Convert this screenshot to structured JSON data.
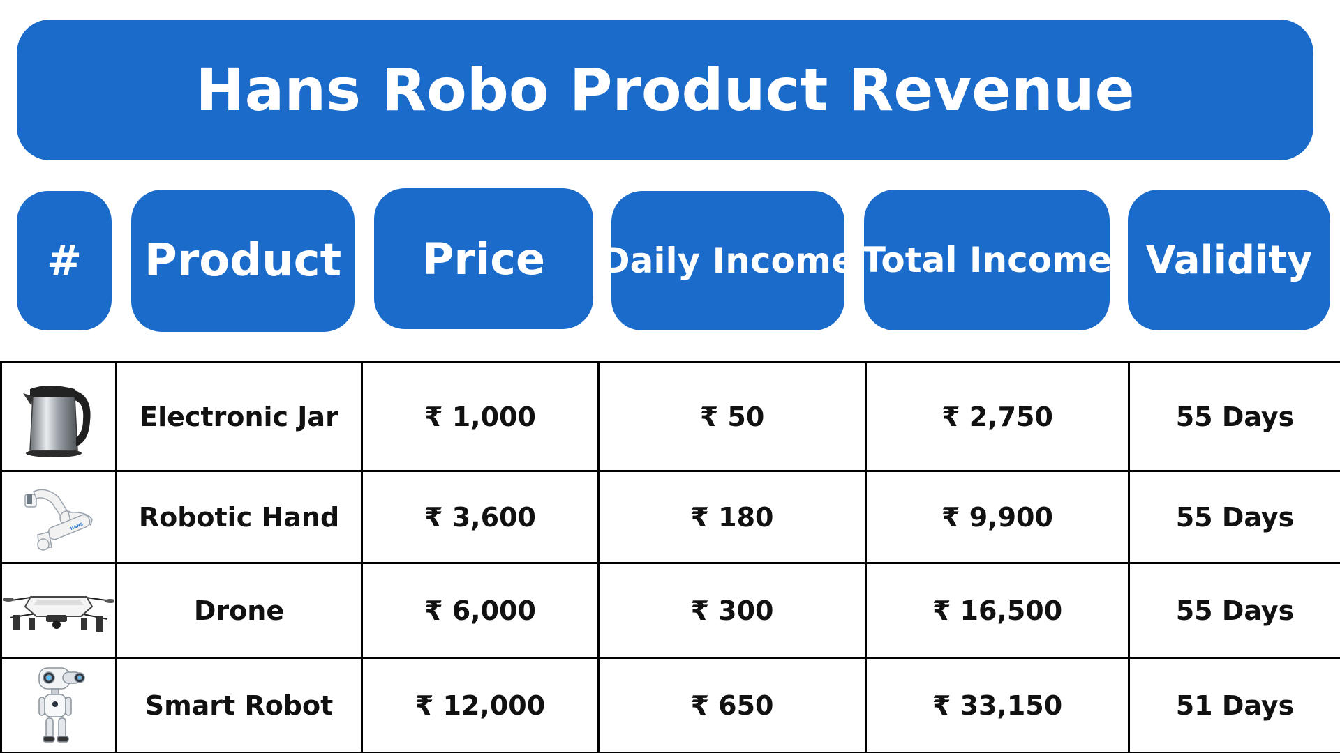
{
  "title": "Hans Robo Product Revenue",
  "headers": {
    "index": "#",
    "product": "Product",
    "price": "Price",
    "daily_income": "Daily Income",
    "total_income": "Total Income",
    "validity": "Validity"
  },
  "rows": [
    {
      "icon": "kettle-icon",
      "product": "Electronic Jar",
      "price": "₹ 1,000",
      "daily_income": "₹ 50",
      "total_income": "₹ 2,750",
      "validity": "55 Days"
    },
    {
      "icon": "robotic-arm-icon",
      "product": "Robotic Hand",
      "price": "₹ 3,600",
      "daily_income": "₹ 180",
      "total_income": "₹ 9,900",
      "validity": "55 Days"
    },
    {
      "icon": "drone-icon",
      "product": "Drone",
      "price": "₹ 6,000",
      "daily_income": "₹ 300",
      "total_income": "₹ 16,500",
      "validity": "55 Days"
    },
    {
      "icon": "robot-icon",
      "product": "Smart Robot",
      "price": "₹ 12,000",
      "daily_income": "₹ 650",
      "total_income": "₹ 33,150",
      "validity": "51 Days"
    }
  ],
  "colors": {
    "accent": "#1b6bcb",
    "border": "#000000",
    "text": "#111111"
  }
}
